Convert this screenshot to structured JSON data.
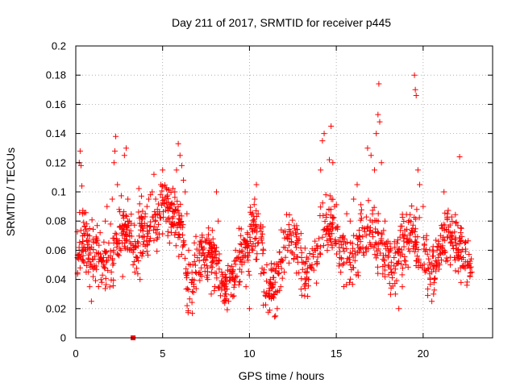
{
  "chart_data": {
    "type": "scatter",
    "title": "Day 211 of 2017, SRMTID for receiver p445",
    "xlabel": "GPS time / hours",
    "ylabel": "SRMTID / TECUs",
    "xlim": [
      0,
      24
    ],
    "ylim": [
      0,
      0.2
    ],
    "xticks": [
      0,
      5,
      10,
      15,
      20
    ],
    "xtick_labels": [
      "0",
      "5",
      "10",
      "15",
      "20"
    ],
    "yticks": [
      0,
      0.02,
      0.04,
      0.06,
      0.08,
      0.1,
      0.12,
      0.14,
      0.16,
      0.18,
      0.2
    ],
    "ytick_labels": [
      "0",
      "0.02",
      "0.04",
      "0.06",
      "0.08",
      "0.1",
      "0.12",
      "0.14",
      "0.16",
      "0.18",
      "0.2"
    ],
    "grid": true,
    "marker": "+",
    "color": "#ff0000",
    "x_extent_of_data": [
      0,
      22.8
    ],
    "series": [
      {
        "name": "SRMTID",
        "note": "representative sample of a dense point cloud",
        "points": [
          [
            0.1,
            0.055
          ],
          [
            0.2,
            0.12
          ],
          [
            0.25,
            0.128
          ],
          [
            0.3,
            0.118
          ],
          [
            0.35,
            0.104
          ],
          [
            0.4,
            0.085
          ],
          [
            0.5,
            0.062
          ],
          [
            0.6,
            0.045
          ],
          [
            0.7,
            0.052
          ],
          [
            0.8,
            0.035
          ],
          [
            0.9,
            0.025
          ],
          [
            1.0,
            0.042
          ],
          [
            1.1,
            0.048
          ],
          [
            1.2,
            0.068
          ],
          [
            1.3,
            0.058
          ],
          [
            1.4,
            0.072
          ],
          [
            1.5,
            0.038
          ],
          [
            1.6,
            0.055
          ],
          [
            1.7,
            0.08
          ],
          [
            1.8,
            0.09
          ],
          [
            1.9,
            0.065
          ],
          [
            2.0,
            0.078
          ],
          [
            2.1,
            0.095
          ],
          [
            2.2,
            0.12
          ],
          [
            2.25,
            0.128
          ],
          [
            2.3,
            0.138
          ],
          [
            2.4,
            0.105
          ],
          [
            2.5,
            0.088
          ],
          [
            2.6,
            0.06
          ],
          [
            2.7,
            0.042
          ],
          [
            2.8,
            0.125
          ],
          [
            2.9,
            0.13
          ],
          [
            3.0,
            0.095
          ],
          [
            3.1,
            0.07
          ],
          [
            3.2,
            0.06
          ],
          [
            3.3,
            0.05
          ],
          [
            3.4,
            0.045
          ],
          [
            3.5,
            0.055
          ],
          [
            3.6,
            0.065
          ],
          [
            3.7,
            0.04
          ],
          [
            3.8,
            0.082
          ],
          [
            3.9,
            0.075
          ],
          [
            4.0,
            0.085
          ],
          [
            4.1,
            0.09
          ],
          [
            4.2,
            0.095
          ],
          [
            4.3,
            0.098
          ],
          [
            4.4,
            0.1
          ],
          [
            4.5,
            0.112
          ],
          [
            4.6,
            0.095
          ],
          [
            4.7,
            0.088
          ],
          [
            4.8,
            0.085
          ],
          [
            4.9,
            0.105
          ],
          [
            5.0,
            0.115
          ],
          [
            5.1,
            0.092
          ],
          [
            5.2,
            0.08
          ],
          [
            5.3,
            0.07
          ],
          [
            5.4,
            0.065
          ],
          [
            5.5,
            0.072
          ],
          [
            5.6,
            0.078
          ],
          [
            5.7,
            0.1
          ],
          [
            5.8,
            0.115
          ],
          [
            5.9,
            0.133
          ],
          [
            6.0,
            0.125
          ],
          [
            6.1,
            0.118
          ],
          [
            6.2,
            0.108
          ],
          [
            6.3,
            0.1
          ],
          [
            6.4,
            0.085
          ],
          [
            6.5,
            0.06
          ],
          [
            6.6,
            0.05
          ],
          [
            6.7,
            0.04
          ],
          [
            6.8,
            0.035
          ],
          [
            6.9,
            0.045
          ],
          [
            7.0,
            0.055
          ],
          [
            7.2,
            0.065
          ],
          [
            7.4,
            0.05
          ],
          [
            7.6,
            0.04
          ],
          [
            7.8,
            0.03
          ],
          [
            8.0,
            0.055
          ],
          [
            8.1,
            0.1
          ],
          [
            8.2,
            0.08
          ],
          [
            8.4,
            0.045
          ],
          [
            8.6,
            0.03
          ],
          [
            8.8,
            0.025
          ],
          [
            9.0,
            0.045
          ],
          [
            9.2,
            0.06
          ],
          [
            9.4,
            0.075
          ],
          [
            9.5,
            0.07
          ],
          [
            9.6,
            0.055
          ],
          [
            9.8,
            0.035
          ],
          [
            10.0,
            0.02
          ],
          [
            10.2,
            0.06
          ],
          [
            10.3,
            0.095
          ],
          [
            10.4,
            0.105
          ],
          [
            10.5,
            0.085
          ],
          [
            10.6,
            0.075
          ],
          [
            10.8,
            0.06
          ],
          [
            11.0,
            0.05
          ],
          [
            11.2,
            0.04
          ],
          [
            11.4,
            0.03
          ],
          [
            11.5,
            0.015
          ],
          [
            11.6,
            0.02
          ],
          [
            11.8,
            0.035
          ],
          [
            12.0,
            0.045
          ],
          [
            12.2,
            0.06
          ],
          [
            12.4,
            0.07
          ],
          [
            12.6,
            0.075
          ],
          [
            12.8,
            0.065
          ],
          [
            13.0,
            0.055
          ],
          [
            13.2,
            0.045
          ],
          [
            13.4,
            0.04
          ],
          [
            13.6,
            0.05
          ],
          [
            13.8,
            0.06
          ],
          [
            14.0,
            0.068
          ],
          [
            14.1,
            0.115
          ],
          [
            14.2,
            0.135
          ],
          [
            14.3,
            0.14
          ],
          [
            14.4,
            0.098
          ],
          [
            14.5,
            0.075
          ],
          [
            14.6,
            0.122
          ],
          [
            14.7,
            0.145
          ],
          [
            14.8,
            0.12
          ],
          [
            14.9,
            0.09
          ],
          [
            15.0,
            0.065
          ],
          [
            15.2,
            0.055
          ],
          [
            15.4,
            0.07
          ],
          [
            15.6,
            0.085
          ],
          [
            15.8,
            0.08
          ],
          [
            16.0,
            0.095
          ],
          [
            16.2,
            0.105
          ],
          [
            16.4,
            0.085
          ],
          [
            16.6,
            0.075
          ],
          [
            16.8,
            0.13
          ],
          [
            17.0,
            0.125
          ],
          [
            17.2,
            0.115
          ],
          [
            17.3,
            0.14
          ],
          [
            17.4,
            0.153
          ],
          [
            17.45,
            0.174
          ],
          [
            17.5,
            0.148
          ],
          [
            17.6,
            0.12
          ],
          [
            17.8,
            0.08
          ],
          [
            18.0,
            0.06
          ],
          [
            18.2,
            0.045
          ],
          [
            18.4,
            0.03
          ],
          [
            18.6,
            0.02
          ],
          [
            18.8,
            0.035
          ],
          [
            19.0,
            0.05
          ],
          [
            19.2,
            0.065
          ],
          [
            19.4,
            0.075
          ],
          [
            19.5,
            0.18
          ],
          [
            19.55,
            0.17
          ],
          [
            19.6,
            0.166
          ],
          [
            19.7,
            0.115
          ],
          [
            19.8,
            0.105
          ],
          [
            20.0,
            0.09
          ],
          [
            20.2,
            0.07
          ],
          [
            20.4,
            0.05
          ],
          [
            20.5,
            0.025
          ],
          [
            20.6,
            0.03
          ],
          [
            20.8,
            0.06
          ],
          [
            21.0,
            0.07
          ],
          [
            21.2,
            0.1
          ],
          [
            21.4,
            0.085
          ],
          [
            21.6,
            0.065
          ],
          [
            21.8,
            0.055
          ],
          [
            22.0,
            0.06
          ],
          [
            22.1,
            0.124
          ],
          [
            22.2,
            0.075
          ],
          [
            22.4,
            0.065
          ],
          [
            22.6,
            0.05
          ],
          [
            22.8,
            0.045
          ]
        ]
      }
    ],
    "outlier_marker": {
      "x": 3.3,
      "y": 0
    }
  }
}
